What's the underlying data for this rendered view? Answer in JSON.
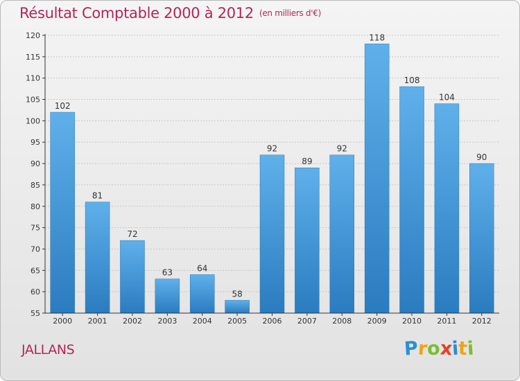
{
  "title": "Résultat Comptable 2000 à 2012",
  "unit": "(en milliers d'€)",
  "commune": "JALLANS",
  "logo": {
    "text": "Proxiti",
    "letters": [
      {
        "char": "P",
        "color": "#2a8fd6"
      },
      {
        "char": "r",
        "color": "#f2a21a"
      },
      {
        "char": "o",
        "color": "#7bbf2e"
      },
      {
        "char": "x",
        "color": "#e8402a"
      },
      {
        "char": "i",
        "color": "#2a8fd6"
      },
      {
        "char": "t",
        "color": "#f2a21a"
      },
      {
        "char": "i",
        "color": "#7bbf2e"
      }
    ]
  },
  "colors": {
    "title": "#b0275a",
    "bar_top": "#5fb0ea",
    "bar_bottom": "#2a7cc0",
    "axis": "#333333",
    "grid": "#c8c8c8"
  },
  "chart_data": {
    "type": "bar",
    "title": "Résultat Comptable 2000 à 2012",
    "subtitle": "(en milliers d'€)",
    "xlabel": "",
    "ylabel": "",
    "categories": [
      "2000",
      "2001",
      "2002",
      "2003",
      "2004",
      "2005",
      "2006",
      "2007",
      "2008",
      "2009",
      "2010",
      "2011",
      "2012"
    ],
    "values": [
      102,
      81,
      72,
      63,
      64,
      58,
      92,
      89,
      92,
      118,
      108,
      104,
      90
    ],
    "data_labels": [
      "102",
      "81",
      "72",
      "63",
      "64",
      "58",
      "92",
      "89",
      "92",
      "118",
      "108",
      "104",
      "90"
    ],
    "ylim": [
      55,
      120
    ],
    "yticks": [
      55,
      60,
      65,
      70,
      75,
      80,
      85,
      90,
      95,
      100,
      105,
      110,
      115,
      120
    ],
    "grid": true,
    "legend": "none"
  }
}
